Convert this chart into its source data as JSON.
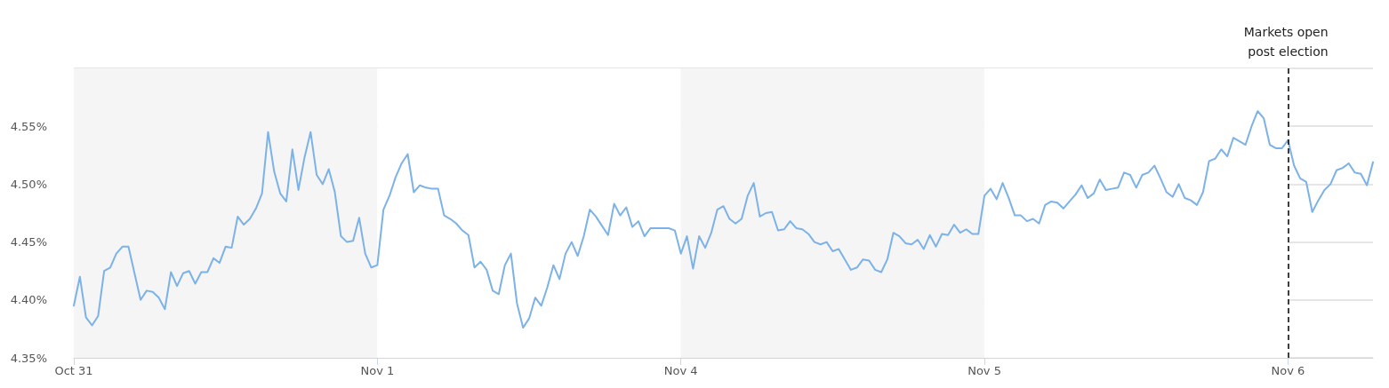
{
  "chart_data": {
    "type": "line",
    "categories": [
      "Oct 31",
      null,
      null,
      null,
      null,
      null,
      null,
      null,
      null,
      null,
      null,
      null,
      null,
      null,
      null,
      null,
      null,
      null,
      null,
      null,
      null,
      null,
      null,
      null,
      null,
      null,
      null,
      null,
      null,
      null,
      null,
      null,
      null,
      null,
      null,
      null,
      null,
      null,
      null,
      null,
      null,
      null,
      null,
      null,
      null,
      null,
      null,
      null,
      null,
      null,
      "Nov 1",
      null,
      null,
      null,
      null,
      null,
      null,
      null,
      null,
      null,
      null,
      null,
      null,
      null,
      null,
      null,
      null,
      null,
      null,
      null,
      null,
      null,
      null,
      null,
      null,
      null,
      null,
      null,
      null,
      null,
      null,
      null,
      null,
      null,
      null,
      null,
      null,
      null,
      null,
      null,
      null,
      null,
      null,
      null,
      null,
      null,
      null,
      null,
      null,
      null,
      "Nov 4",
      null,
      null,
      null,
      null,
      null,
      null,
      null,
      null,
      null,
      null,
      null,
      null,
      null,
      null,
      null,
      null,
      null,
      null,
      null,
      null,
      null,
      null,
      null,
      null,
      null,
      null,
      null,
      null,
      null,
      null,
      null,
      null,
      null,
      null,
      null,
      null,
      null,
      null,
      null,
      null,
      null,
      null,
      null,
      null,
      null,
      null,
      null,
      null,
      null,
      "Nov 5",
      null,
      null,
      null,
      null,
      null,
      null,
      null,
      null,
      null,
      null,
      null,
      null,
      null,
      null,
      null,
      null,
      null,
      null,
      null,
      null,
      null,
      null,
      null,
      null,
      null,
      null,
      null,
      null,
      null,
      null,
      null,
      null,
      null,
      null,
      null,
      null,
      null,
      null,
      null,
      null,
      null,
      null,
      null,
      null,
      null,
      null,
      null,
      null,
      null,
      "Nov 6",
      null,
      null,
      null,
      null,
      null,
      null,
      null,
      null,
      null,
      null,
      null,
      null,
      null,
      null
    ],
    "series": [
      {
        "color": "#7cb2e8",
        "values": [
          4.395,
          4.42,
          4.385,
          4.378,
          4.386,
          4.425,
          4.428,
          4.44,
          4.446,
          4.446,
          4.423,
          4.4,
          4.408,
          4.407,
          4.402,
          4.392,
          4.424,
          4.412,
          4.423,
          4.425,
          4.414,
          4.424,
          4.424,
          4.436,
          4.432,
          4.446,
          4.445,
          4.472,
          4.465,
          4.47,
          4.479,
          4.492,
          4.545,
          4.511,
          4.492,
          4.485,
          4.53,
          4.495,
          4.523,
          4.545,
          4.508,
          4.5,
          4.513,
          4.493,
          4.455,
          4.45,
          4.451,
          4.471,
          4.44,
          4.428,
          4.43,
          4.478,
          4.49,
          4.506,
          4.518,
          4.526,
          4.493,
          4.499,
          4.497,
          4.496,
          4.496,
          4.473,
          4.47,
          4.466,
          4.46,
          4.456,
          4.428,
          4.433,
          4.426,
          4.408,
          4.405,
          4.43,
          4.44,
          4.397,
          4.376,
          4.384,
          4.402,
          4.395,
          4.411,
          4.43,
          4.418,
          4.44,
          4.45,
          4.438,
          4.455,
          4.478,
          4.472,
          4.464,
          4.456,
          4.483,
          4.473,
          4.48,
          4.463,
          4.468,
          4.455,
          4.462,
          4.462,
          4.462,
          4.462,
          4.46,
          4.44,
          4.455,
          4.427,
          4.455,
          4.445,
          4.458,
          4.478,
          4.481,
          4.47,
          4.466,
          4.47,
          4.49,
          4.501,
          4.472,
          4.475,
          4.476,
          4.46,
          4.461,
          4.468,
          4.462,
          4.461,
          4.457,
          4.45,
          4.448,
          4.45,
          4.442,
          4.444,
          4.435,
          4.426,
          4.428,
          4.435,
          4.434,
          4.426,
          4.424,
          4.435,
          4.458,
          4.455,
          4.449,
          4.448,
          4.452,
          4.444,
          4.456,
          4.446,
          4.457,
          4.456,
          4.465,
          4.458,
          4.461,
          4.457,
          4.457,
          4.49,
          4.496,
          4.487,
          4.501,
          4.488,
          4.473,
          4.473,
          4.468,
          4.47,
          4.466,
          4.482,
          4.485,
          4.484,
          4.479,
          4.485,
          4.491,
          4.499,
          4.488,
          4.492,
          4.504,
          4.495,
          4.496,
          4.497,
          4.51,
          4.508,
          4.497,
          4.508,
          4.51,
          4.516,
          4.505,
          4.493,
          4.489,
          4.5,
          4.488,
          4.486,
          4.482,
          4.493,
          4.52,
          4.522,
          4.53,
          4.524,
          4.54,
          4.537,
          4.534,
          4.55,
          4.563,
          4.557,
          4.534,
          4.531,
          4.531,
          4.538,
          4.516,
          4.505,
          4.502,
          4.476,
          4.486,
          4.495,
          4.5,
          4.512,
          4.514,
          4.518,
          4.51,
          4.509,
          4.499,
          4.519
        ]
      }
    ],
    "ylim": [
      4.35,
      4.6
    ],
    "yticks": [
      {
        "value": 4.35,
        "label": "4.35%"
      },
      {
        "value": 4.4,
        "label": "4.40%"
      },
      {
        "value": 4.45,
        "label": "4.45%"
      },
      {
        "value": 4.5,
        "label": "4.50%"
      },
      {
        "value": 4.55,
        "label": "4.55%"
      },
      {
        "value": 4.6,
        "label": null
      }
    ],
    "grid": "y",
    "marker": "none",
    "line_style": "solid",
    "ref_lines": [
      {
        "axis": "x",
        "value": "Nov 6",
        "label": "Markets open post election",
        "color": "#000000",
        "line_style": "dashed"
      }
    ]
  }
}
